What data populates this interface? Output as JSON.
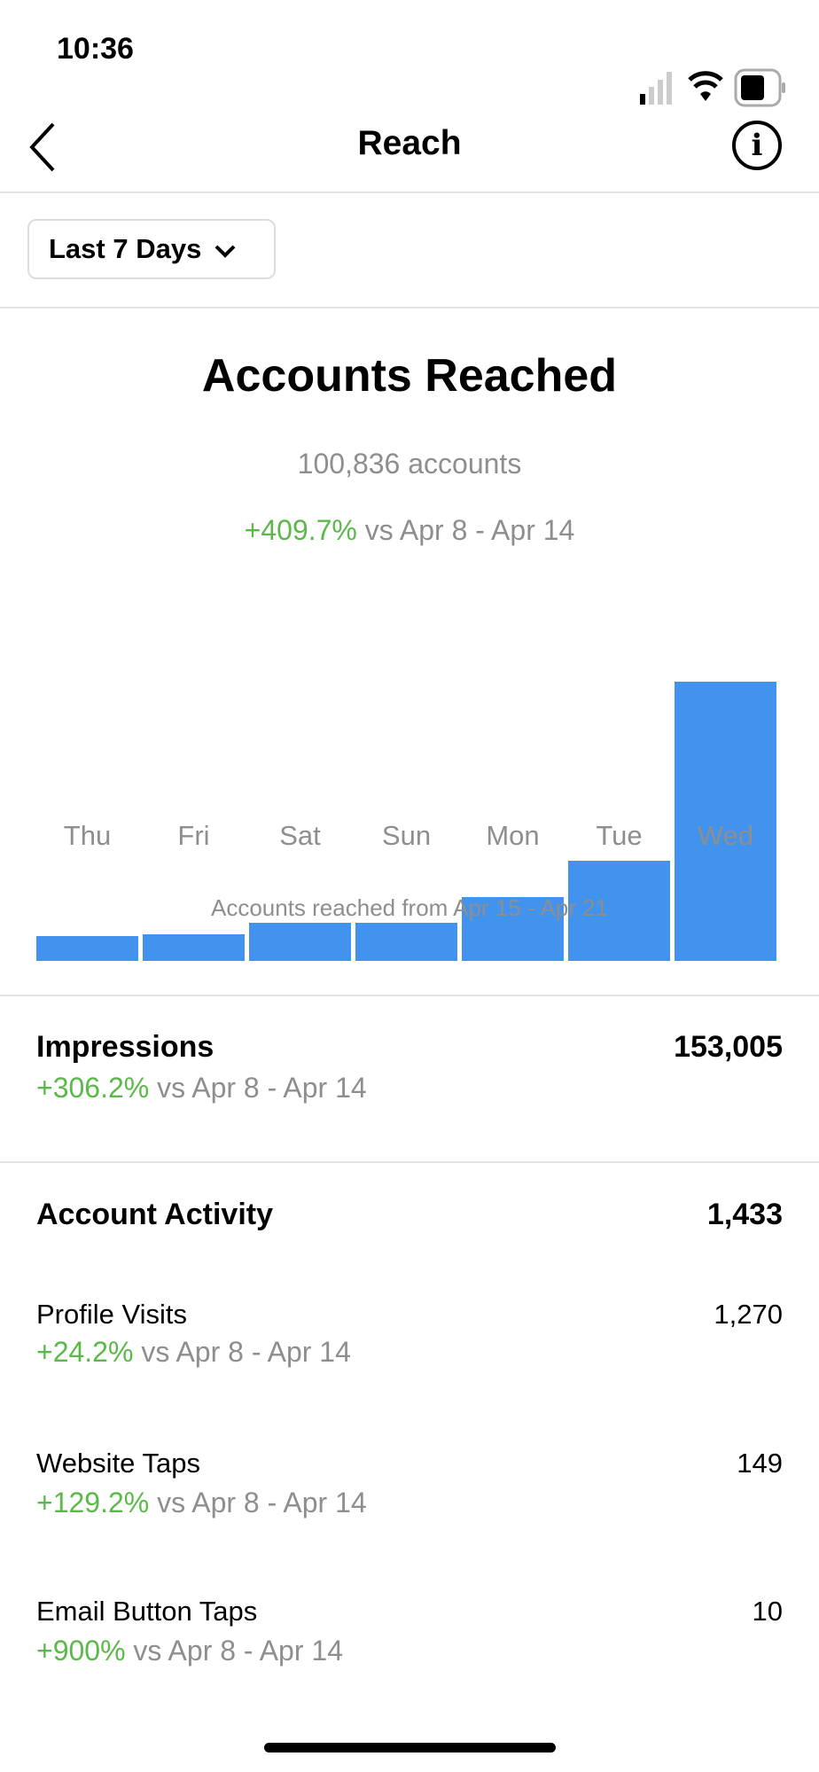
{
  "status_bar": {
    "time": "10:36",
    "icons": [
      "signal-icon",
      "wifi-icon",
      "battery-icon"
    ]
  },
  "nav": {
    "title": "Reach",
    "back_icon": "chevron-left-icon",
    "info_icon": "info-icon"
  },
  "filter": {
    "selected": "Last 7 Days"
  },
  "reach": {
    "title": "Accounts Reached",
    "count": "100,836 accounts",
    "change": "+409.7%",
    "compare": " vs Apr 8 - Apr 14",
    "caption": "Accounts reached from Apr 15 - Apr 21"
  },
  "chart_data": {
    "type": "bar",
    "categories": [
      "Thu",
      "Fri",
      "Sat",
      "Sun",
      "Mon",
      "Tue",
      "Wed"
    ],
    "values": [
      9,
      9.5,
      13.7,
      13.7,
      23,
      36,
      100
    ],
    "value_unit": "relative height (Wed = 100), unlabeled",
    "color": "#4293ed"
  },
  "impressions": {
    "label": "Impressions",
    "value": "153,005",
    "change": "+306.2%",
    "compare": " vs Apr 8 - Apr 14"
  },
  "activity": {
    "label": "Account Activity",
    "value": "1,433",
    "items": [
      {
        "label": "Profile Visits",
        "value": "1,270",
        "change": "+24.2%",
        "compare": " vs Apr 8 - Apr 14"
      },
      {
        "label": "Website Taps",
        "value": "149",
        "change": "+129.2%",
        "compare": " vs Apr 8 - Apr 14"
      },
      {
        "label": "Email Button Taps",
        "value": "10",
        "change": "+900%",
        "compare": " vs Apr 8 - Apr 14"
      }
    ]
  },
  "colors": {
    "positive": "#5bb94a",
    "bar": "#4293ed",
    "muted": "#8e8e8e"
  }
}
